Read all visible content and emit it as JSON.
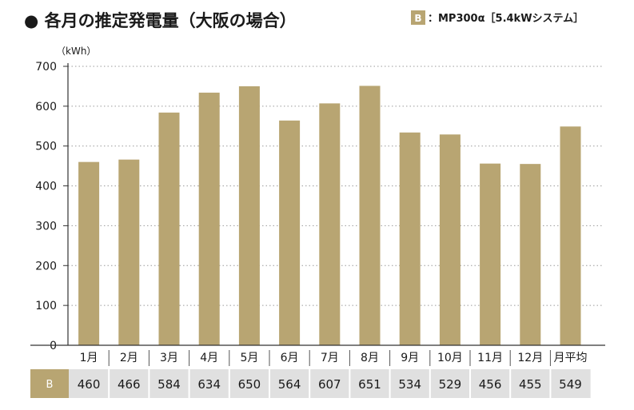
{
  "title": "● 各月の推定発電量（大阪の場合）",
  "legend": {
    "key": "B",
    "label": "：MP300α［5.4kWシステム］",
    "color": "#b8a572"
  },
  "chart_data": {
    "type": "bar",
    "unit_label": "（kWh）",
    "categories": [
      "1月",
      "2月",
      "3月",
      "4月",
      "5月",
      "6月",
      "7月",
      "8月",
      "9月",
      "10月",
      "11月",
      "12月",
      "月平均"
    ],
    "series": [
      {
        "name": "B",
        "values": [
          460,
          466,
          584,
          634,
          650,
          564,
          607,
          651,
          534,
          529,
          456,
          455,
          549
        ]
      }
    ],
    "yticks": [
      0,
      100,
      200,
      300,
      400,
      500,
      600,
      700
    ],
    "ylim": [
      0,
      700
    ],
    "grid": true,
    "bar_color": "#b8a572",
    "table_row_color": "#e0e0e0"
  }
}
